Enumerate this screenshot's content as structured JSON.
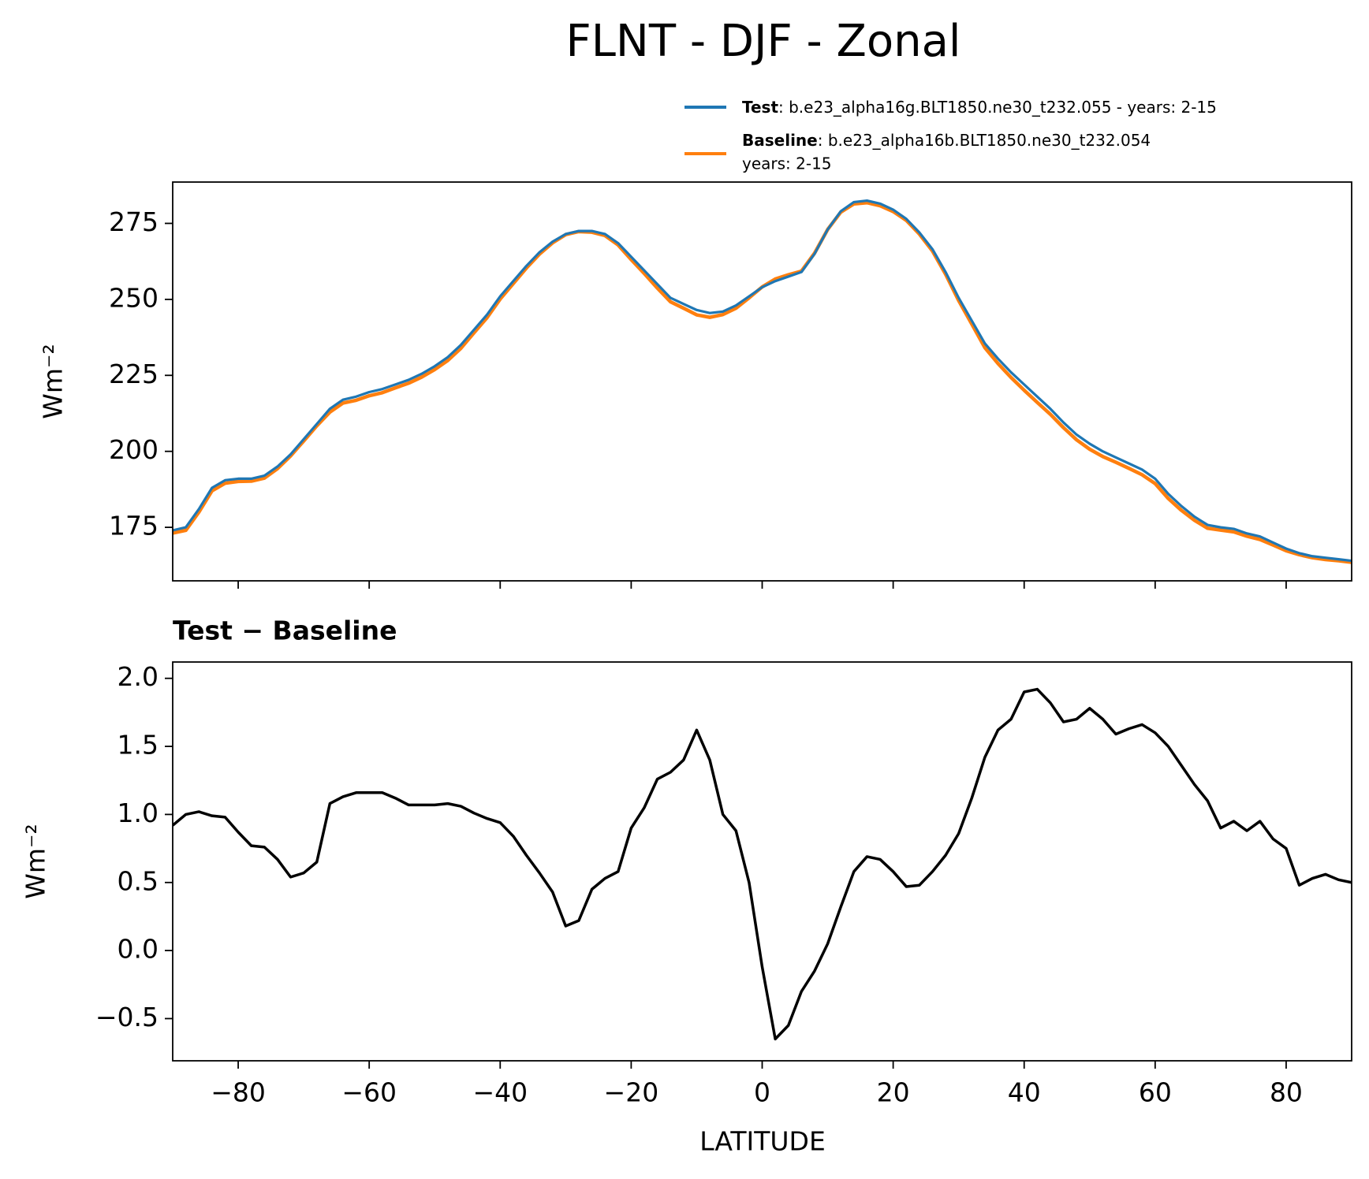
{
  "chart_data": [
    {
      "type": "line",
      "title": "FLNT - DJF - Zonal",
      "ylabel": "Wm⁻²",
      "x": [
        -90,
        -88,
        -86,
        -84,
        -82,
        -80,
        -78,
        -76,
        -74,
        -72,
        -70,
        -68,
        -66,
        -64,
        -62,
        -60,
        -58,
        -56,
        -54,
        -52,
        -50,
        -48,
        -46,
        -44,
        -42,
        -40,
        -38,
        -36,
        -34,
        -32,
        -30,
        -28,
        -26,
        -24,
        -22,
        -20,
        -18,
        -16,
        -14,
        -12,
        -10,
        -8,
        -6,
        -4,
        -2,
        0,
        2,
        4,
        6,
        8,
        10,
        12,
        14,
        16,
        18,
        20,
        22,
        24,
        26,
        28,
        30,
        32,
        34,
        36,
        38,
        40,
        42,
        44,
        46,
        48,
        50,
        52,
        54,
        56,
        58,
        60,
        62,
        64,
        66,
        68,
        70,
        72,
        74,
        76,
        78,
        80,
        82,
        84,
        86,
        88,
        90
      ],
      "series": [
        {
          "name": "Test",
          "description": ": b.e23_alpha16g.BLT1850.ne30_t232.055 - years: 2-15",
          "color": "#1f77b4",
          "values": [
            174,
            175,
            181,
            188,
            190.5,
            191,
            191,
            192,
            195,
            199,
            204,
            209,
            214,
            217,
            218,
            219.5,
            220.5,
            222,
            223.5,
            225.5,
            228,
            231,
            235,
            240,
            245,
            251,
            256,
            261,
            265.5,
            269,
            271.5,
            272.5,
            272.5,
            271.5,
            268.5,
            264,
            259.5,
            255,
            250.5,
            248.5,
            246.5,
            245.5,
            246,
            248,
            251,
            254,
            256,
            257.5,
            259,
            265,
            273,
            279,
            282,
            282.5,
            281.5,
            279.5,
            276.5,
            272,
            266.5,
            259,
            250.5,
            243,
            235.5,
            230.5,
            226,
            222,
            218,
            214,
            209.5,
            205.5,
            202.5,
            200,
            198,
            196,
            194,
            191,
            186,
            182,
            178.5,
            175.8,
            175,
            174.5,
            173,
            172,
            170,
            168,
            166.5,
            165.5,
            165,
            164.5,
            164
          ]
        },
        {
          "name": "Baseline",
          "description": [
            ": b.e23_alpha16b.BLT1850.ne30_t232.054",
            "years: 2-15"
          ],
          "color": "#ff7f0e",
          "values": [
            173.1,
            174.0,
            180.0,
            187.0,
            189.5,
            190.1,
            190.2,
            191.2,
            194.3,
            198.5,
            203.4,
            208.4,
            212.9,
            215.9,
            216.8,
            218.3,
            219.3,
            220.9,
            222.4,
            224.4,
            226.9,
            229.9,
            233.9,
            239.0,
            244.0,
            250.1,
            255.2,
            260.3,
            264.9,
            268.6,
            271.3,
            272.3,
            272.1,
            271.0,
            267.9,
            263.1,
            258.5,
            253.7,
            249.2,
            247.1,
            244.9,
            244.1,
            245.0,
            247.1,
            250.5,
            254.1,
            256.7,
            258.1,
            259.3,
            265.2,
            273.0,
            278.7,
            281.4,
            281.8,
            280.8,
            278.9,
            276.0,
            271.5,
            265.9,
            258.3,
            249.6,
            241.9,
            234.1,
            228.9,
            224.3,
            220.1,
            216.1,
            212.2,
            207.8,
            203.8,
            200.7,
            198.3,
            196.4,
            194.4,
            192.3,
            189.4,
            184.5,
            180.6,
            177.3,
            174.7,
            174.1,
            173.5,
            172.1,
            171.0,
            169.2,
            167.3,
            166.0,
            165.0,
            164.4,
            164.0,
            163.5
          ]
        }
      ],
      "xlim": [
        -90,
        90
      ],
      "xticks": [
        -80,
        -60,
        -40,
        -20,
        0,
        20,
        40,
        60,
        80
      ],
      "ylim": [
        157.4,
        288.6
      ],
      "yticks": [
        175,
        200,
        225,
        250,
        275
      ]
    },
    {
      "type": "line",
      "title": "Test − Baseline",
      "ylabel": "Wm⁻²",
      "xlabel": "LATITUDE",
      "x": [
        -90,
        -88,
        -86,
        -84,
        -82,
        -80,
        -78,
        -76,
        -74,
        -72,
        -70,
        -68,
        -66,
        -64,
        -62,
        -60,
        -58,
        -56,
        -54,
        -52,
        -50,
        -48,
        -46,
        -44,
        -42,
        -40,
        -38,
        -36,
        -34,
        -32,
        -30,
        -28,
        -26,
        -24,
        -22,
        -20,
        -18,
        -16,
        -14,
        -12,
        -10,
        -8,
        -6,
        -4,
        -2,
        0,
        2,
        4,
        6,
        8,
        10,
        12,
        14,
        16,
        18,
        20,
        22,
        24,
        26,
        28,
        30,
        32,
        34,
        36,
        38,
        40,
        42,
        44,
        46,
        48,
        50,
        52,
        54,
        56,
        58,
        60,
        62,
        64,
        66,
        68,
        70,
        72,
        74,
        76,
        78,
        80,
        82,
        84,
        86,
        88,
        90
      ],
      "series": [
        {
          "color": "#000000",
          "values": [
            0.92,
            1.0,
            1.02,
            0.99,
            0.98,
            0.87,
            0.77,
            0.76,
            0.67,
            0.54,
            0.57,
            0.65,
            1.08,
            1.13,
            1.16,
            1.16,
            1.16,
            1.12,
            1.07,
            1.07,
            1.07,
            1.08,
            1.06,
            1.01,
            0.97,
            0.94,
            0.84,
            0.7,
            0.57,
            0.43,
            0.18,
            0.22,
            0.45,
            0.53,
            0.58,
            0.9,
            1.05,
            1.26,
            1.31,
            1.4,
            1.62,
            1.4,
            1.0,
            0.88,
            0.5,
            -0.12,
            -0.65,
            -0.55,
            -0.3,
            -0.15,
            0.05,
            0.32,
            0.58,
            0.69,
            0.67,
            0.58,
            0.47,
            0.48,
            0.58,
            0.7,
            0.86,
            1.12,
            1.42,
            1.62,
            1.7,
            1.9,
            1.92,
            1.82,
            1.68,
            1.7,
            1.78,
            1.7,
            1.59,
            1.63,
            1.66,
            1.6,
            1.5,
            1.36,
            1.22,
            1.1,
            0.9,
            0.95,
            0.88,
            0.95,
            0.82,
            0.75,
            0.48,
            0.53,
            0.56,
            0.52,
            0.5
          ]
        }
      ],
      "xlim": [
        -90,
        90
      ],
      "xticks": [
        {
          "value": -80,
          "label": "−80"
        },
        {
          "value": -60,
          "label": "−60"
        },
        {
          "value": -40,
          "label": "−40"
        },
        {
          "value": -20,
          "label": "−20"
        },
        0,
        20,
        40,
        60,
        80
      ],
      "ylim": [
        -0.81,
        2.12
      ],
      "yticks": [
        {
          "value": -0.5,
          "label": "−0.5"
        },
        {
          "value": 0,
          "label": "0.0"
        },
        0.5,
        {
          "value": 1,
          "label": "1.0"
        },
        1.5,
        {
          "value": 2,
          "label": "2.0"
        }
      ]
    }
  ]
}
